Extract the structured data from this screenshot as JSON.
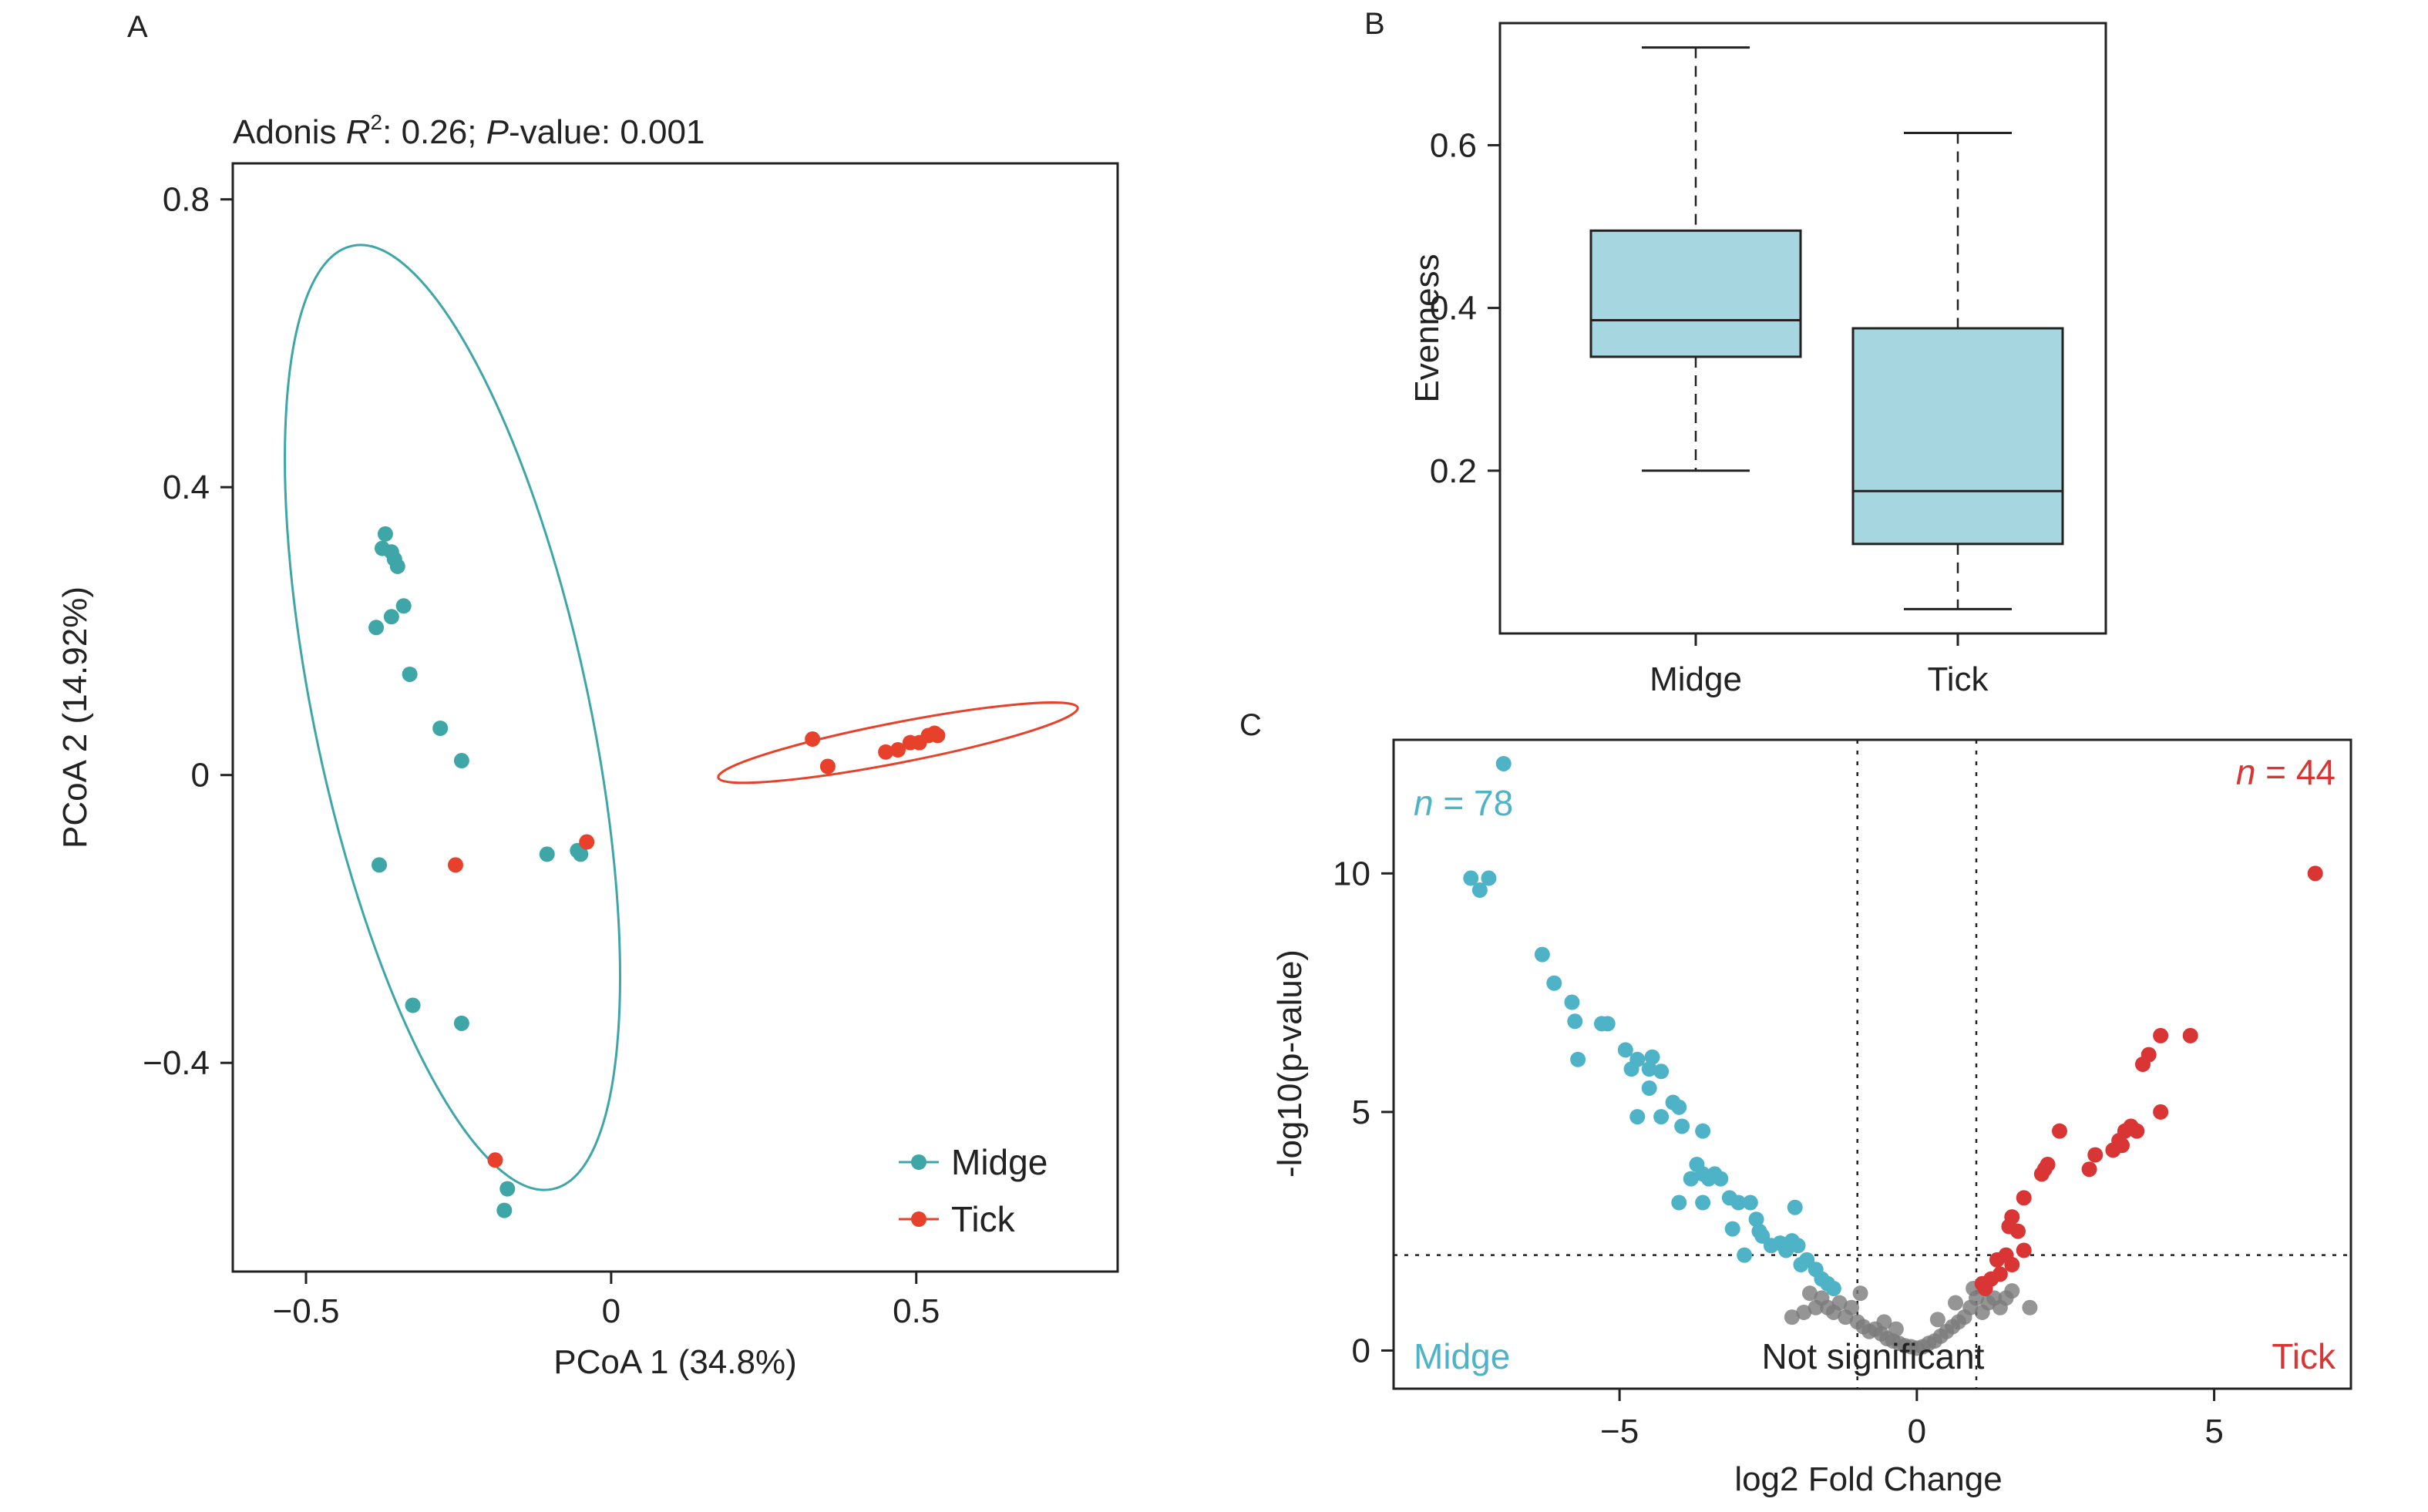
{
  "colors": {
    "midge": "#3ea6a6",
    "tick": "#e8412b",
    "box_fill": "#a6d6df",
    "volcano_midge": "#4fb3c8",
    "volcano_tick": "#d93535",
    "not_significant": "#7a7a7a",
    "ellipse_midge": "#3ea6a6",
    "ellipse_tick": "#e8412b"
  },
  "panels": {
    "A": {
      "letter": "A",
      "subtitle": {
        "prefix": "Adonis ",
        "r_symbol": "R",
        "superscript": "2",
        "middle": ": 0.26; ",
        "p_symbol": "P",
        "suffix": "-value: 0.001"
      },
      "legend": [
        {
          "name": "Midge",
          "color": "#3ea6a6"
        },
        {
          "name": "Tick",
          "color": "#e8412b"
        }
      ]
    },
    "B": {
      "letter": "B"
    },
    "C": {
      "letter": "C"
    }
  },
  "chart_data": [
    {
      "panel": "A",
      "type": "scatter",
      "xlabel": "PCoA 1 (34.8%)",
      "ylabel": "PCoA 2 (14.92%)",
      "xlim": [
        -0.62,
        0.83
      ],
      "ylim": [
        -0.69,
        0.85
      ],
      "xticks": [
        -0.5,
        0,
        0.5
      ],
      "xtick_labels": [
        "−0.5",
        "0",
        "0.5"
      ],
      "yticks": [
        -0.4,
        0,
        0.4,
        0.8
      ],
      "ytick_labels": [
        "−0.4",
        "0",
        "0.4",
        "0.8"
      ],
      "grid": false,
      "legend_position": "bottom-right",
      "series": [
        {
          "name": "Midge",
          "points": [
            [
              -0.37,
              0.335
            ],
            [
              -0.375,
              0.315
            ],
            [
              -0.36,
              0.31
            ],
            [
              -0.355,
              0.3
            ],
            [
              -0.35,
              0.29
            ],
            [
              -0.34,
              0.235
            ],
            [
              -0.36,
              0.22
            ],
            [
              -0.385,
              0.205
            ],
            [
              -0.33,
              0.14
            ],
            [
              -0.28,
              0.065
            ],
            [
              -0.245,
              0.02
            ],
            [
              -0.38,
              -0.125
            ],
            [
              -0.105,
              -0.11
            ],
            [
              -0.055,
              -0.105
            ],
            [
              -0.05,
              -0.11
            ],
            [
              -0.325,
              -0.32
            ],
            [
              -0.245,
              -0.345
            ],
            [
              -0.17,
              -0.575
            ],
            [
              -0.175,
              -0.605
            ]
          ],
          "ellipse": {
            "center": [
              -0.26,
              0.08
            ],
            "rx": 0.225,
            "ry": 0.67,
            "rotation_deg": -12
          }
        },
        {
          "name": "Tick",
          "points": [
            [
              0.33,
              0.05
            ],
            [
              0.355,
              0.012
            ],
            [
              0.45,
              0.032
            ],
            [
              0.47,
              0.035
            ],
            [
              0.49,
              0.045
            ],
            [
              0.505,
              0.045
            ],
            [
              0.52,
              0.055
            ],
            [
              0.535,
              0.055
            ],
            [
              0.53,
              0.058
            ],
            [
              -0.255,
              -0.125
            ],
            [
              -0.04,
              -0.093
            ],
            [
              -0.19,
              -0.535
            ]
          ],
          "ellipse": {
            "center": [
              0.47,
              0.045
            ],
            "rx": 0.3,
            "ry": 0.028,
            "rotation_deg": -11
          }
        }
      ]
    },
    {
      "panel": "B",
      "type": "bar",
      "subtype": "boxplot",
      "categories": [
        "Midge",
        "Tick"
      ],
      "ylabel": "Evenness",
      "ylim": [
        0,
        0.75
      ],
      "yticks": [
        0.2,
        0.4,
        0.6
      ],
      "ytick_labels": [
        "0.2",
        "0.4",
        "0.6"
      ],
      "boxes": [
        {
          "name": "Midge",
          "min": 0.2,
          "q1": 0.34,
          "median": 0.385,
          "q3": 0.495,
          "max": 0.72
        },
        {
          "name": "Tick",
          "min": 0.03,
          "q1": 0.11,
          "median": 0.175,
          "q3": 0.375,
          "max": 0.615
        }
      ]
    },
    {
      "panel": "C",
      "type": "scatter",
      "subtype": "volcano",
      "xlabel": "log2 Fold Change",
      "ylabel": "-log10(p-value)",
      "xlim": [
        -8.8,
        7.3
      ],
      "ylim": [
        -0.8,
        12.8
      ],
      "xticks": [
        -5,
        0,
        5
      ],
      "xtick_labels": [
        "−5",
        "0",
        "5"
      ],
      "yticks": [
        0,
        5,
        10
      ],
      "ytick_labels": [
        "0",
        "5",
        "10"
      ],
      "thresholds": {
        "x": [
          -1,
          1
        ],
        "y": 2
      },
      "annotations": {
        "left_count": {
          "prefix": "n",
          "text": " = 78"
        },
        "right_count": {
          "prefix": "n",
          "text": " = 44"
        },
        "left_label": "Midge",
        "center_label": "Not significant",
        "right_label": "Tick"
      },
      "series": [
        {
          "name": "Midge",
          "points": [
            [
              -7.5,
              9.9
            ],
            [
              -7.2,
              9.9
            ],
            [
              -7.35,
              9.65
            ],
            [
              -6.95,
              12.3
            ],
            [
              -6.3,
              8.3
            ],
            [
              -6.1,
              7.7
            ],
            [
              -5.8,
              7.3
            ],
            [
              -5.75,
              6.9
            ],
            [
              -5.7,
              6.1
            ],
            [
              -5.3,
              6.85
            ],
            [
              -5.2,
              6.85
            ],
            [
              -4.9,
              6.3
            ],
            [
              -4.7,
              6.1
            ],
            [
              -4.8,
              5.9
            ],
            [
              -4.5,
              5.9
            ],
            [
              -4.45,
              6.15
            ],
            [
              -4.3,
              5.85
            ],
            [
              -4.5,
              5.5
            ],
            [
              -4.1,
              5.2
            ],
            [
              -4.0,
              5.1
            ],
            [
              -4.3,
              4.9
            ],
            [
              -4.7,
              4.9
            ],
            [
              -3.95,
              4.7
            ],
            [
              -3.6,
              4.6
            ],
            [
              -3.7,
              3.9
            ],
            [
              -3.6,
              3.7
            ],
            [
              -3.4,
              3.7
            ],
            [
              -3.3,
              3.6
            ],
            [
              -3.15,
              3.2
            ],
            [
              -3.0,
              3.1
            ],
            [
              -2.8,
              3.1
            ],
            [
              -2.7,
              2.75
            ],
            [
              -2.65,
              2.5
            ],
            [
              -2.6,
              2.4
            ],
            [
              -2.45,
              2.2
            ],
            [
              -2.3,
              2.25
            ],
            [
              -2.1,
              2.3
            ],
            [
              -2.05,
              3.0
            ],
            [
              -2.0,
              2.2
            ],
            [
              -1.85,
              1.9
            ],
            [
              -1.7,
              1.7
            ],
            [
              -1.6,
              1.5
            ],
            [
              -1.5,
              1.4
            ],
            [
              -1.4,
              1.3
            ],
            [
              -3.6,
              3.1
            ],
            [
              -3.1,
              2.55
            ],
            [
              -2.9,
              2.0
            ],
            [
              -3.8,
              3.6
            ],
            [
              -3.5,
              3.6
            ],
            [
              -4.0,
              3.1
            ],
            [
              -2.2,
              2.1
            ],
            [
              -1.95,
              1.8
            ]
          ]
        },
        {
          "name": "Tick",
          "points": [
            [
              6.7,
              10.0
            ],
            [
              4.6,
              6.6
            ],
            [
              4.1,
              6.6
            ],
            [
              3.9,
              6.2
            ],
            [
              3.8,
              6.0
            ],
            [
              4.1,
              5.0
            ],
            [
              3.6,
              4.7
            ],
            [
              3.5,
              4.6
            ],
            [
              3.4,
              4.4
            ],
            [
              3.3,
              4.2
            ],
            [
              3.0,
              4.1
            ],
            [
              2.9,
              3.8
            ],
            [
              2.4,
              4.6
            ],
            [
              2.2,
              3.9
            ],
            [
              2.1,
              3.7
            ],
            [
              1.8,
              3.2
            ],
            [
              1.6,
              2.8
            ],
            [
              1.55,
              2.6
            ],
            [
              1.7,
              2.5
            ],
            [
              1.5,
              2.0
            ],
            [
              1.35,
              1.9
            ],
            [
              1.6,
              1.8
            ],
            [
              1.25,
              1.5
            ],
            [
              1.1,
              1.4
            ],
            [
              1.15,
              1.3
            ],
            [
              3.7,
              4.6
            ],
            [
              3.45,
              4.3
            ],
            [
              2.15,
              3.8
            ],
            [
              1.8,
              2.1
            ],
            [
              1.4,
              1.6
            ]
          ]
        },
        {
          "name": "Not significant",
          "points": [
            [
              -1.9,
              0.8
            ],
            [
              -1.7,
              0.9
            ],
            [
              -1.6,
              1.1
            ],
            [
              -1.5,
              0.9
            ],
            [
              -1.4,
              0.8
            ],
            [
              -1.3,
              1.0
            ],
            [
              -1.2,
              0.7
            ],
            [
              -1.1,
              0.9
            ],
            [
              -1.0,
              0.6
            ],
            [
              -0.9,
              0.5
            ],
            [
              -0.8,
              0.4
            ],
            [
              -0.7,
              0.45
            ],
            [
              -0.6,
              0.35
            ],
            [
              -0.5,
              0.25
            ],
            [
              -0.4,
              0.2
            ],
            [
              -0.3,
              0.15
            ],
            [
              -0.2,
              0.1
            ],
            [
              -0.1,
              0.08
            ],
            [
              0.0,
              0.05
            ],
            [
              0.1,
              0.08
            ],
            [
              0.2,
              0.15
            ],
            [
              0.3,
              0.2
            ],
            [
              0.4,
              0.3
            ],
            [
              0.5,
              0.4
            ],
            [
              0.6,
              0.5
            ],
            [
              0.7,
              0.6
            ],
            [
              0.8,
              0.7
            ],
            [
              0.9,
              0.9
            ],
            [
              1.0,
              1.1
            ],
            [
              1.1,
              0.8
            ],
            [
              1.2,
              1.0
            ],
            [
              1.3,
              1.1
            ],
            [
              1.4,
              0.9
            ],
            [
              1.5,
              1.1
            ],
            [
              1.6,
              1.25
            ],
            [
              1.9,
              0.9
            ],
            [
              -2.1,
              0.7
            ],
            [
              -1.8,
              1.2
            ],
            [
              0.95,
              1.3
            ],
            [
              -0.95,
              1.2
            ],
            [
              0.65,
              1.0
            ],
            [
              -0.55,
              0.6
            ],
            [
              0.35,
              0.65
            ],
            [
              -0.35,
              0.45
            ]
          ]
        }
      ]
    }
  ]
}
